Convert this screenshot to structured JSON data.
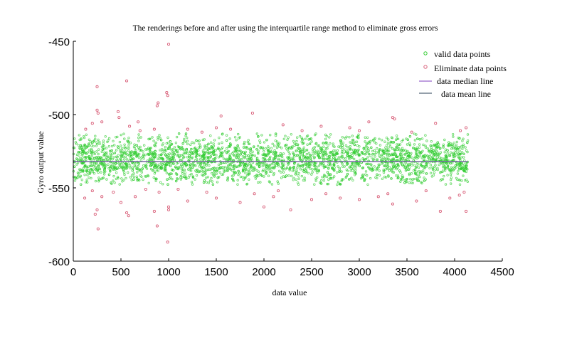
{
  "chart_data": {
    "type": "scatter",
    "title": "The renderings before and after using the interquartile range method to eliminate gross errors",
    "xlabel": "data value",
    "ylabel": "Gyro output value",
    "xlim": [
      0,
      4500
    ],
    "ylim": [
      -600,
      -450
    ],
    "x_ticks": [
      "0",
      "500",
      "1000",
      "1500",
      "2000",
      "2500",
      "3000",
      "3500",
      "4000",
      "4500"
    ],
    "y_ticks": [
      "-450",
      "-500",
      "-550",
      "-600"
    ],
    "y_tick_values": [
      -450,
      -500,
      -550,
      -600
    ],
    "x_tick_values": [
      0,
      500,
      1000,
      1500,
      2000,
      2500,
      3000,
      3500,
      4000,
      4500
    ],
    "legend_placement": "top-right",
    "grid": false,
    "series": [
      {
        "name": "valid data points",
        "kind": "scatter",
        "marker": "circle",
        "color": "#33cc33"
      },
      {
        "name": "Eliminate data points",
        "kind": "scatter",
        "marker": "circle-open",
        "color": "#d9607a"
      },
      {
        "name": "data median line",
        "kind": "hline",
        "value": -532,
        "color": "#9966cc"
      },
      {
        "name": "data mean line",
        "kind": "hline",
        "value": -532,
        "color": "#556677"
      }
    ],
    "valid_points_summary": {
      "x_range": [
        0,
        4140
      ],
      "y_range": [
        -548,
        -513
      ],
      "approx_count": 3000
    },
    "eliminate_points": [
      [
        250,
        -481
      ],
      [
        560,
        -477
      ],
      [
        1000,
        -452
      ],
      [
        980,
        -485
      ],
      [
        990,
        -487
      ],
      [
        890,
        -492
      ],
      [
        880,
        -494
      ],
      [
        250,
        -497
      ],
      [
        260,
        -499
      ],
      [
        300,
        -505
      ],
      [
        470,
        -498
      ],
      [
        480,
        -502
      ],
      [
        590,
        -508
      ],
      [
        1880,
        -499
      ],
      [
        1550,
        -501
      ],
      [
        3350,
        -502
      ],
      [
        3370,
        -503
      ],
      [
        4120,
        -509
      ],
      [
        3100,
        -505
      ],
      [
        2900,
        -509
      ],
      [
        1200,
        -510
      ],
      [
        680,
        -505
      ],
      [
        130,
        -510
      ],
      [
        200,
        -506
      ],
      [
        1500,
        -509
      ],
      [
        2600,
        -508
      ],
      [
        3800,
        -506
      ],
      [
        2200,
        -507
      ],
      [
        700,
        -511
      ],
      [
        1650,
        -510
      ],
      [
        2400,
        -511
      ],
      [
        3550,
        -512
      ],
      [
        4060,
        -511
      ],
      [
        850,
        -510
      ],
      [
        1350,
        -512
      ],
      [
        3000,
        -511
      ],
      [
        250,
        -565
      ],
      [
        260,
        -578
      ],
      [
        230,
        -568
      ],
      [
        580,
        -569
      ],
      [
        560,
        -567
      ],
      [
        850,
        -566
      ],
      [
        880,
        -576
      ],
      [
        1000,
        -565
      ],
      [
        990,
        -587
      ],
      [
        1000,
        -563
      ],
      [
        2280,
        -565
      ],
      [
        2000,
        -563
      ],
      [
        3850,
        -566
      ],
      [
        4120,
        -566
      ],
      [
        3350,
        -561
      ],
      [
        200,
        -552
      ],
      [
        300,
        -556
      ],
      [
        120,
        -557
      ],
      [
        500,
        -560
      ],
      [
        650,
        -556
      ],
      [
        1200,
        -559
      ],
      [
        1500,
        -557
      ],
      [
        1750,
        -560
      ],
      [
        2500,
        -558
      ],
      [
        2800,
        -557
      ],
      [
        3000,
        -558
      ],
      [
        3200,
        -556
      ],
      [
        3600,
        -559
      ],
      [
        3950,
        -557
      ],
      [
        4100,
        -553
      ],
      [
        900,
        -553
      ],
      [
        1400,
        -553
      ],
      [
        1900,
        -554
      ],
      [
        2100,
        -556
      ],
      [
        2650,
        -554
      ],
      [
        3300,
        -554
      ],
      [
        3700,
        -552
      ],
      [
        4050,
        -555
      ],
      [
        2150,
        -552
      ],
      [
        420,
        -553
      ],
      [
        760,
        -551
      ],
      [
        1100,
        -551
      ]
    ]
  }
}
